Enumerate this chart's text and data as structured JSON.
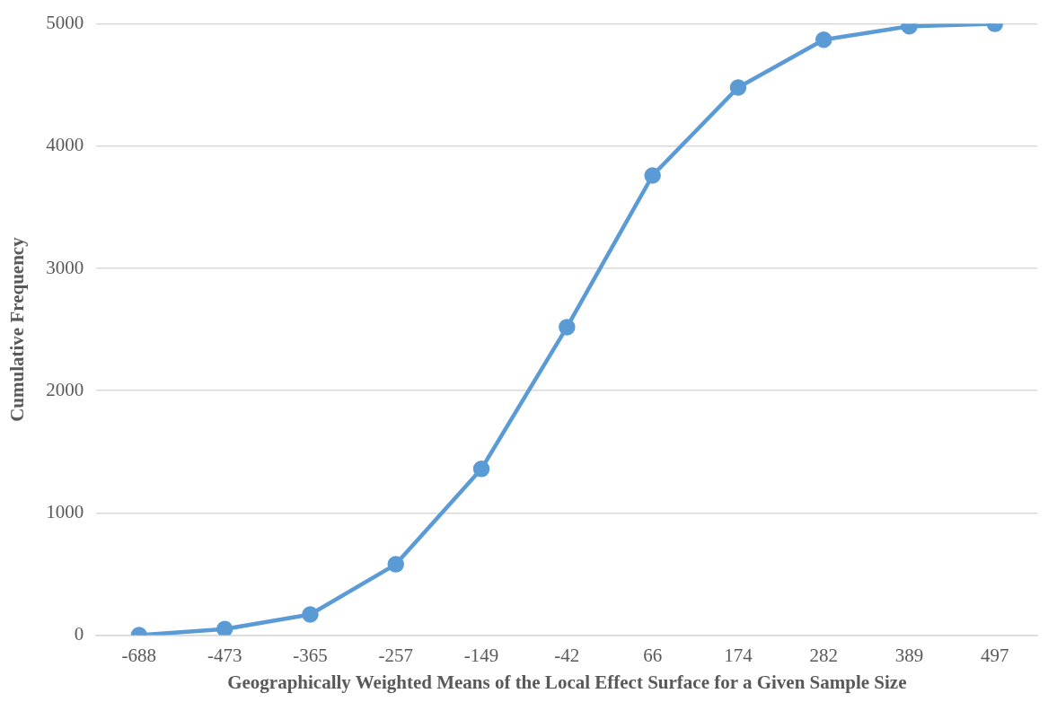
{
  "chart_data": {
    "type": "line",
    "xlabel": "Geographically Weighted Means of the Local Effect Surface for a Given Sample Size",
    "ylabel": "Cumulative Frequency",
    "categories": [
      "-688",
      "-473",
      "-365",
      "-257",
      "-149",
      "-42",
      "66",
      "174",
      "282",
      "389",
      "497"
    ],
    "series": [
      {
        "color": "#5b9bd5",
        "values": [
          0,
          50,
          170,
          580,
          1360,
          2520,
          3760,
          4480,
          4870,
          4980,
          5000
        ]
      }
    ],
    "ylim": [
      0,
      5000
    ],
    "yticks": [
      0,
      1000,
      2000,
      3000,
      4000,
      5000
    ],
    "grid": "y",
    "legend": false,
    "marker": "circle",
    "line_style": "solid"
  }
}
